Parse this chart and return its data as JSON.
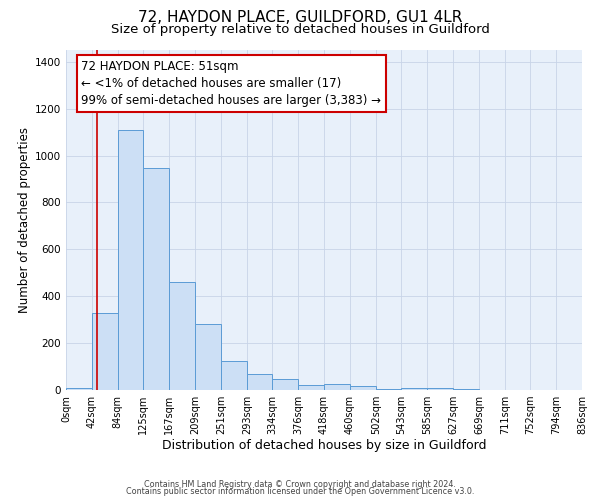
{
  "title": "72, HAYDON PLACE, GUILDFORD, GU1 4LR",
  "subtitle": "Size of property relative to detached houses in Guildford",
  "xlabel": "Distribution of detached houses by size in Guildford",
  "ylabel": "Number of detached properties",
  "bar_color": "#ccdff5",
  "bar_edge_color": "#5b9bd5",
  "bar_edge_width": 0.7,
  "background_color": "#e8f0fa",
  "grid_color": "#c8d4e8",
  "fig_bg_color": "#ffffff",
  "bin_edges": [
    0,
    42,
    84,
    125,
    167,
    209,
    251,
    293,
    334,
    376,
    418,
    460,
    502,
    543,
    585,
    627,
    669,
    711,
    752,
    794,
    836
  ],
  "bin_labels": [
    "0sqm",
    "42sqm",
    "84sqm",
    "125sqm",
    "167sqm",
    "209sqm",
    "251sqm",
    "293sqm",
    "334sqm",
    "376sqm",
    "418sqm",
    "460sqm",
    "502sqm",
    "543sqm",
    "585sqm",
    "627sqm",
    "669sqm",
    "711sqm",
    "752sqm",
    "794sqm",
    "836sqm"
  ],
  "counts": [
    10,
    330,
    1110,
    945,
    460,
    280,
    125,
    70,
    47,
    22,
    25,
    18,
    5,
    7,
    7,
    6,
    0,
    0,
    1,
    0
  ],
  "property_size": 51,
  "red_line_color": "#cc0000",
  "annotation_line1": "72 HAYDON PLACE: 51sqm",
  "annotation_line2": "← <1% of detached houses are smaller (17)",
  "annotation_line3": "99% of semi-detached houses are larger (3,383) →",
  "annotation_box_color": "#cc0000",
  "annotation_fontsize": 8.5,
  "ylim": [
    0,
    1450
  ],
  "yticks": [
    0,
    200,
    400,
    600,
    800,
    1000,
    1200,
    1400
  ],
  "footer_line1": "Contains HM Land Registry data © Crown copyright and database right 2024.",
  "footer_line2": "Contains public sector information licensed under the Open Government Licence v3.0.",
  "title_fontsize": 11,
  "subtitle_fontsize": 9.5,
  "xlabel_fontsize": 9,
  "ylabel_fontsize": 8.5
}
